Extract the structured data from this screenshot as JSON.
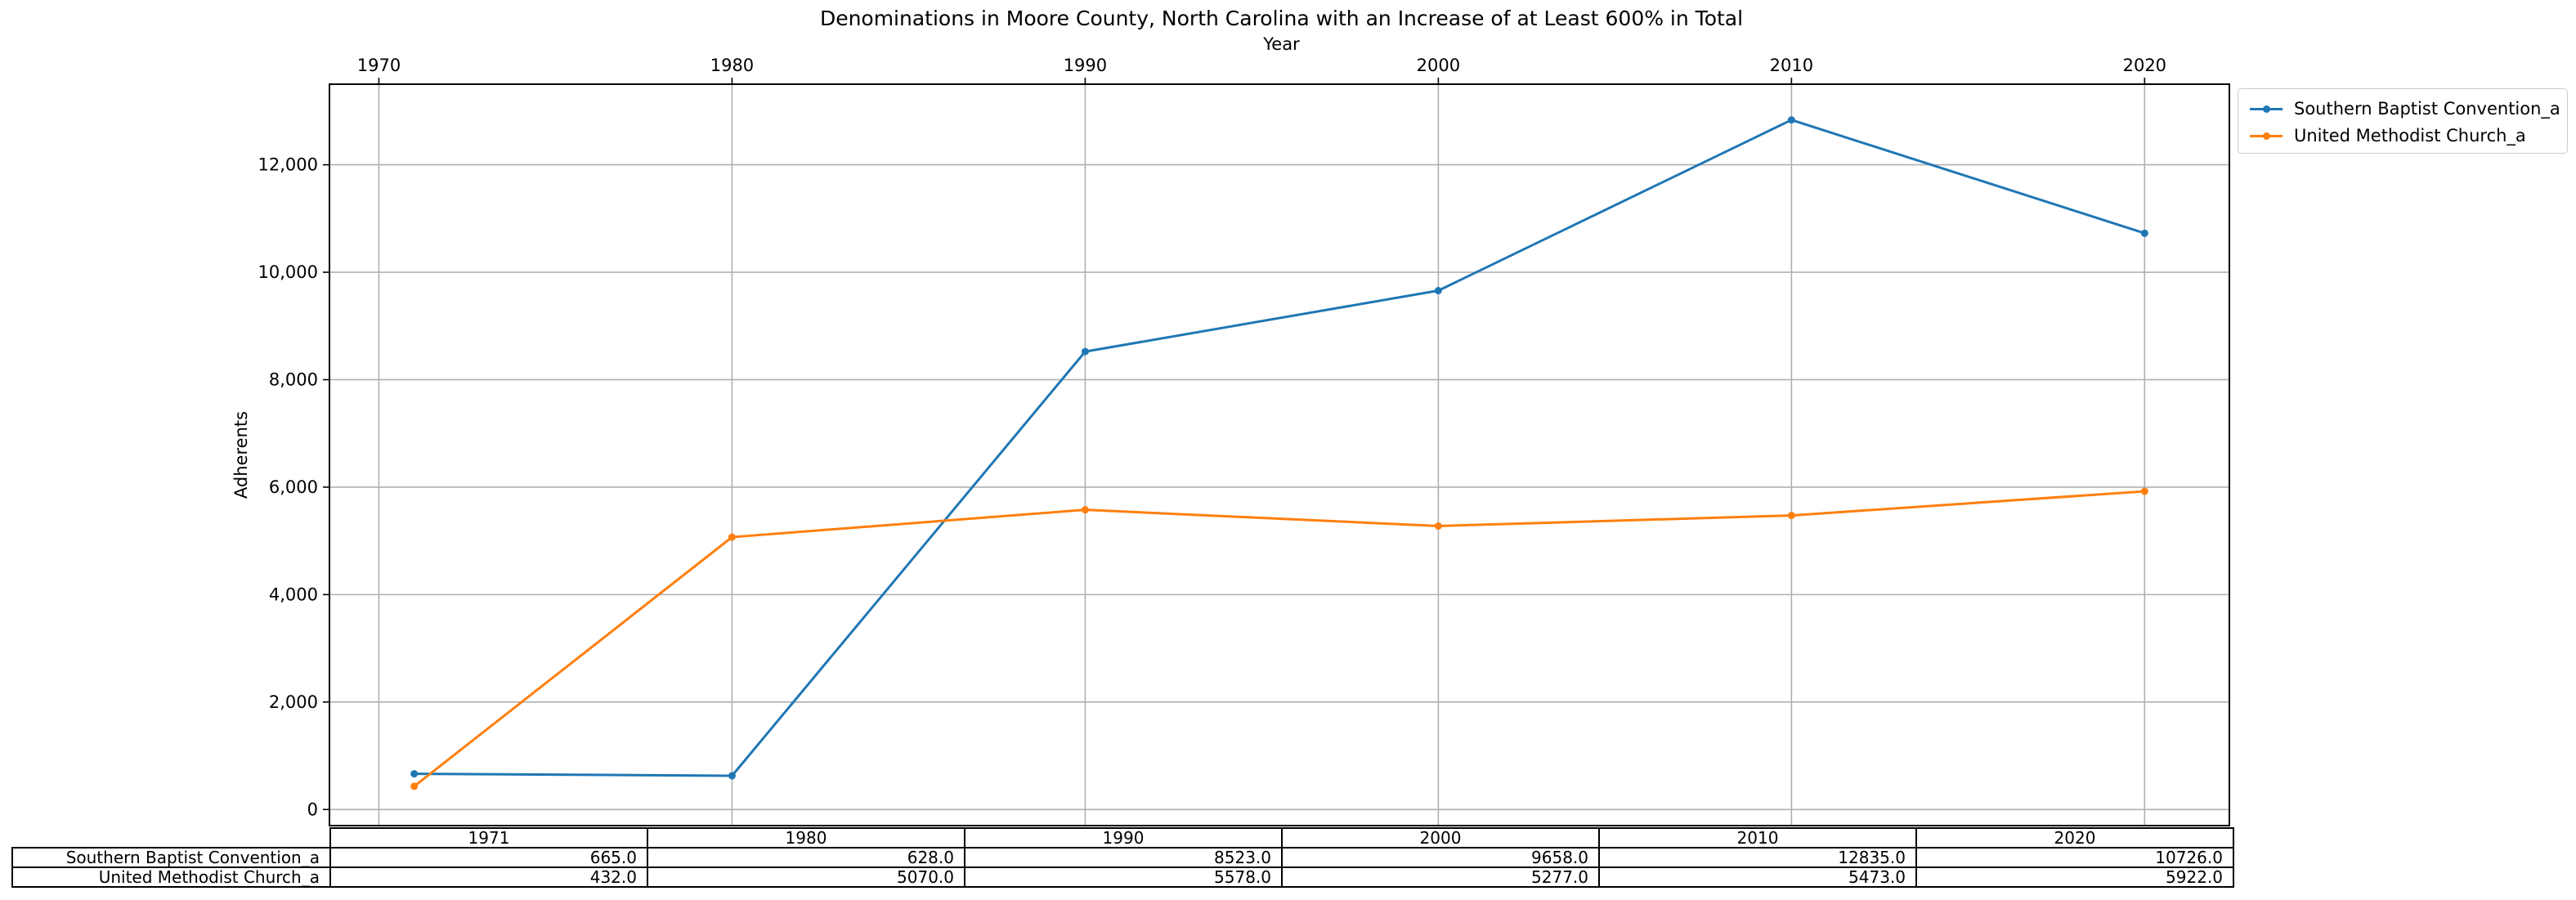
{
  "chart_data": {
    "type": "line",
    "title": "Denominations in Moore County, North Carolina with an Increase of at Least 600% in Total",
    "xlabel": "Year",
    "ylabel": "Adherents",
    "x": [
      1971,
      1980,
      1990,
      2000,
      2010,
      2020
    ],
    "xlim": [
      1968.6,
      2022.4
    ],
    "xticks": [
      1970,
      1980,
      1990,
      2000,
      2010,
      2020
    ],
    "ylim": [
      -300,
      13500
    ],
    "yticks": [
      0,
      2000,
      4000,
      6000,
      8000,
      10000,
      12000
    ],
    "ytick_labels": [
      "0",
      "2,000",
      "4,000",
      "6,000",
      "8,000",
      "10,000",
      "12,000"
    ],
    "grid": true,
    "legend_position": "outside-top-right",
    "series": [
      {
        "name": "Southern Baptist Convention_a",
        "color": "#1f77b4",
        "values": [
          665,
          628,
          8523,
          9658,
          12835,
          10726
        ]
      },
      {
        "name": "United Methodist Church_a",
        "color": "#ff7f0e",
        "values": [
          432,
          5070,
          5578,
          5277,
          5473,
          5922
        ]
      }
    ],
    "table": {
      "columns": [
        "1971",
        "1980",
        "1990",
        "2000",
        "2010",
        "2020"
      ],
      "rows": [
        {
          "label": "Southern Baptist Convention_a",
          "cells": [
            "665.0",
            "628.0",
            "8523.0",
            "9658.0",
            "12835.0",
            "10726.0"
          ]
        },
        {
          "label": "United Methodist Church_a",
          "cells": [
            "432.0",
            "5070.0",
            "5578.0",
            "5277.0",
            "5473.0",
            "5922.0"
          ]
        }
      ]
    }
  }
}
